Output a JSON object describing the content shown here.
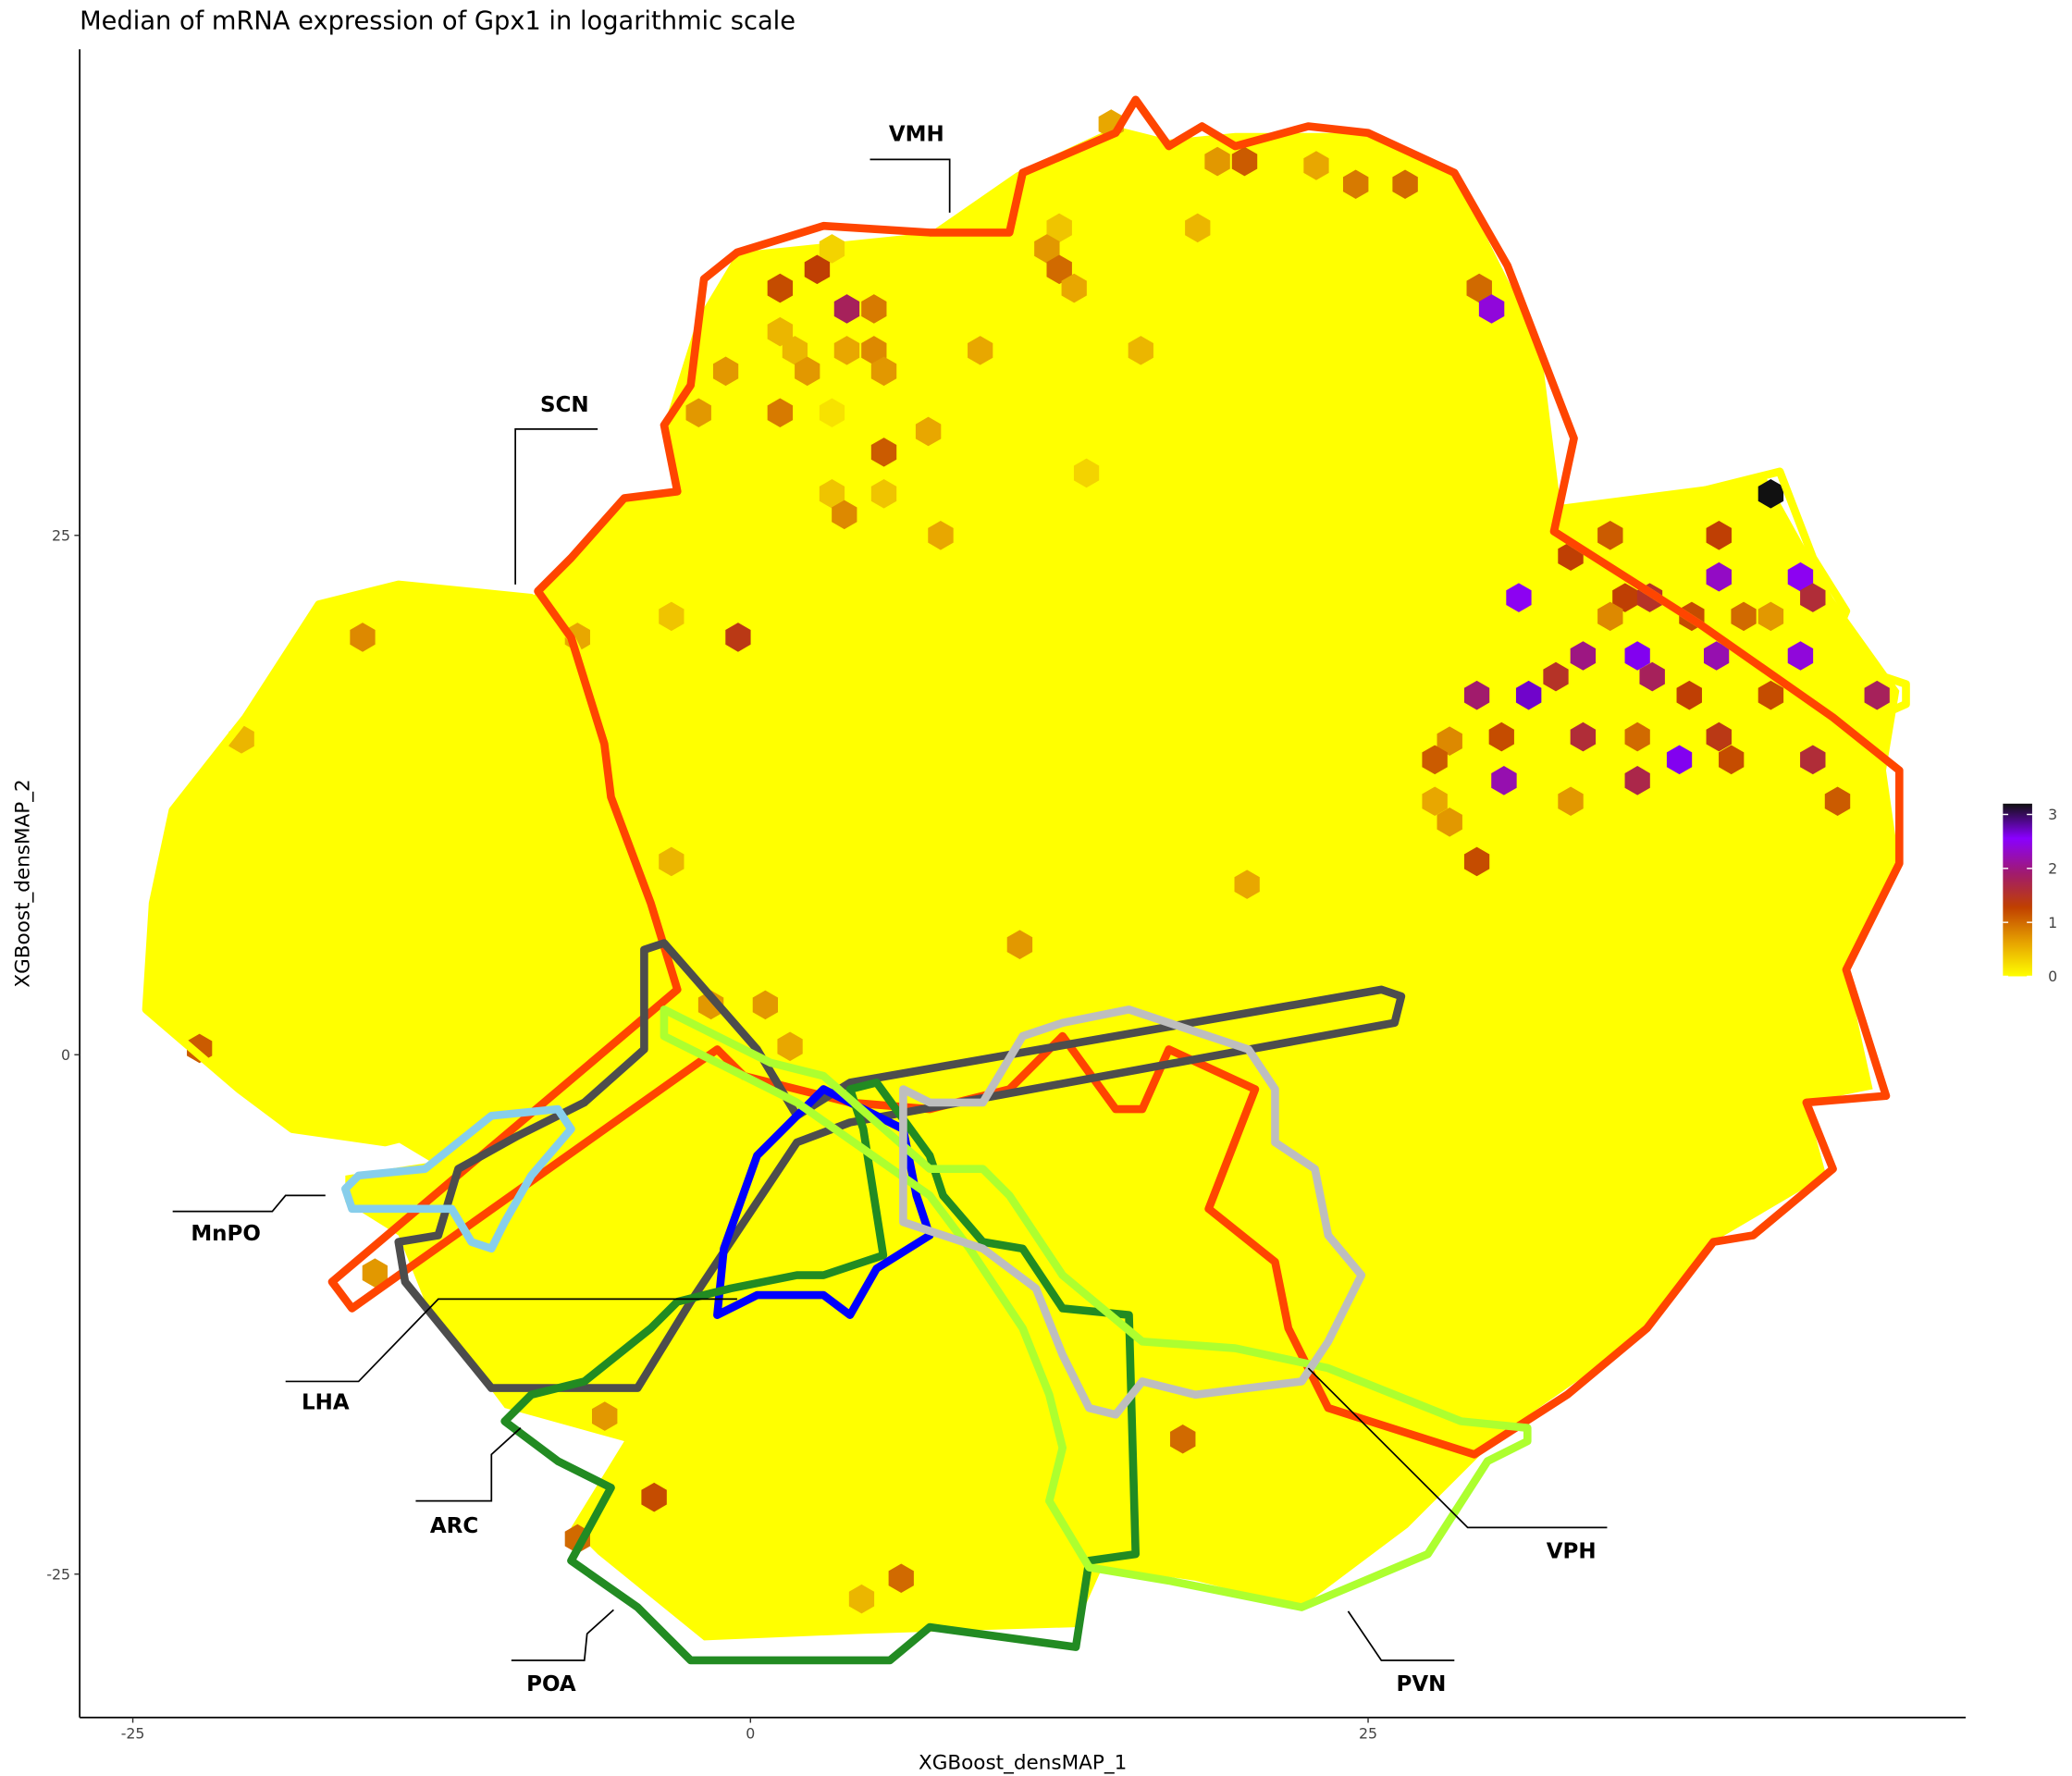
{
  "chart_data": {
    "type": "hexbin",
    "title": "Median of mRNA expression of Gpx1 in logarithmic scale",
    "xlabel": "XGBoost_densMAP_1",
    "ylabel": "XGBoost_densMAP_2",
    "xlim": [
      -27.15,
      49.19
    ],
    "ylim": [
      -31.9,
      48.4
    ],
    "xticks": [
      -25,
      0,
      25
    ],
    "yticks": [
      -25,
      0,
      25
    ],
    "colorbar": {
      "lim": [
        0,
        3.2
      ],
      "ticks": [
        0,
        1,
        2,
        3
      ],
      "colors": [
        "#ffff00",
        "#e6a100",
        "#c04000",
        "#a01a70",
        "#8a00ff",
        "#111111"
      ]
    },
    "annotations": [
      "VMH",
      "SCN",
      "MnPO",
      "LHA",
      "ARC",
      "POA",
      "PVN",
      "VPH"
    ],
    "hexes": {
      "x": [
        14.6,
        18.9,
        20.0,
        22.9,
        24.5,
        26.5,
        18.1,
        12.5,
        12.0,
        12.5,
        13.1,
        3.3,
        1.2,
        2.7,
        3.9,
        5.0,
        1.2,
        1.8,
        3.9,
        5.0,
        9.3,
        15.8,
        -1.0,
        2.3,
        5.4,
        -2.1,
        1.2,
        3.3,
        7.2,
        5.4,
        13.6,
        3.3,
        5.4,
        3.8,
        7.7,
        29.5,
        30.0,
        41.3,
        34.8,
        39.2,
        33.2,
        39.2,
        42.5,
        31.1,
        35.4,
        36.4,
        43.0,
        34.8,
        38.1,
        40.2,
        41.3,
        33.7,
        35.9,
        39.1,
        42.5,
        32.6,
        36.5,
        29.4,
        31.5,
        38.0,
        41.3,
        45.6,
        30.4,
        33.7,
        35.9,
        39.2,
        28.3,
        27.7,
        37.6,
        39.7,
        43.0,
        30.5,
        35.9,
        33.2,
        44.0,
        29.4,
        27.7,
        28.3,
        -0.5,
        -7.0,
        -3.2,
        -15.7,
        -20.6,
        -22.3,
        -3.2,
        20.1,
        10.9,
        -1.6,
        0.6,
        1.6,
        -15.2,
        -5.9,
        -3.9,
        -7.0,
        6.1,
        4.5,
        17.5
      ],
      "y": [
        44.8,
        43.0,
        43.0,
        42.8,
        41.9,
        41.9,
        39.8,
        39.8,
        38.8,
        37.8,
        36.9,
        38.8,
        36.9,
        37.8,
        35.9,
        35.9,
        34.8,
        33.9,
        33.9,
        33.9,
        33.9,
        33.9,
        32.9,
        32.9,
        32.9,
        30.9,
        30.9,
        30.9,
        30.0,
        29.0,
        28.0,
        27.0,
        27.0,
        26.0,
        25.0,
        36.9,
        35.9,
        27.0,
        25.0,
        25.0,
        24.0,
        23.0,
        23.0,
        22.0,
        22.0,
        22.0,
        22.0,
        21.1,
        21.1,
        21.1,
        21.1,
        19.2,
        19.2,
        19.2,
        19.2,
        18.2,
        18.2,
        17.3,
        17.3,
        17.3,
        17.3,
        17.3,
        15.3,
        15.3,
        15.3,
        15.3,
        15.1,
        14.2,
        14.2,
        14.2,
        14.2,
        13.2,
        13.2,
        12.2,
        12.2,
        9.3,
        12.2,
        11.2,
        20.1,
        20.1,
        21.1,
        20.1,
        15.2,
        0.3,
        9.3,
        8.2,
        5.3,
        2.4,
        2.4,
        0.4,
        -10.5,
        -17.4,
        -21.3,
        -23.3,
        -25.2,
        -26.2,
        -18.5
      ],
      "values": [
        0.6,
        0.7,
        1.1,
        0.6,
        0.9,
        1.0,
        0.5,
        0.4,
        0.7,
        1.0,
        0.6,
        0.3,
        1.2,
        1.3,
        1.8,
        0.9,
        0.5,
        0.5,
        0.6,
        0.8,
        0.6,
        0.5,
        0.7,
        0.7,
        0.7,
        0.7,
        0.9,
        0.2,
        0.6,
        1.1,
        0.3,
        0.4,
        0.4,
        0.8,
        0.6,
        1.0,
        2.4,
        3.2,
        1.1,
        1.3,
        1.3,
        2.3,
        2.5,
        2.5,
        1.3,
        1.5,
        1.6,
        0.8,
        1.2,
        1.0,
        0.7,
        2.0,
        2.6,
        2.2,
        2.4,
        1.5,
        1.8,
        1.9,
        2.7,
        1.3,
        1.2,
        1.8,
        1.2,
        1.6,
        1.0,
        1.4,
        0.8,
        1.1,
        2.6,
        1.2,
        1.6,
        2.2,
        1.7,
        0.7,
        1.1,
        1.2,
        0.6,
        0.7,
        1.4,
        0.6,
        0.4,
        0.8,
        0.5,
        1.1,
        0.5,
        0.6,
        0.7,
        0.7,
        0.7,
        0.6,
        0.7,
        0.7,
        1.2,
        1.0,
        1.0,
        0.5,
        1.0
      ]
    }
  }
}
